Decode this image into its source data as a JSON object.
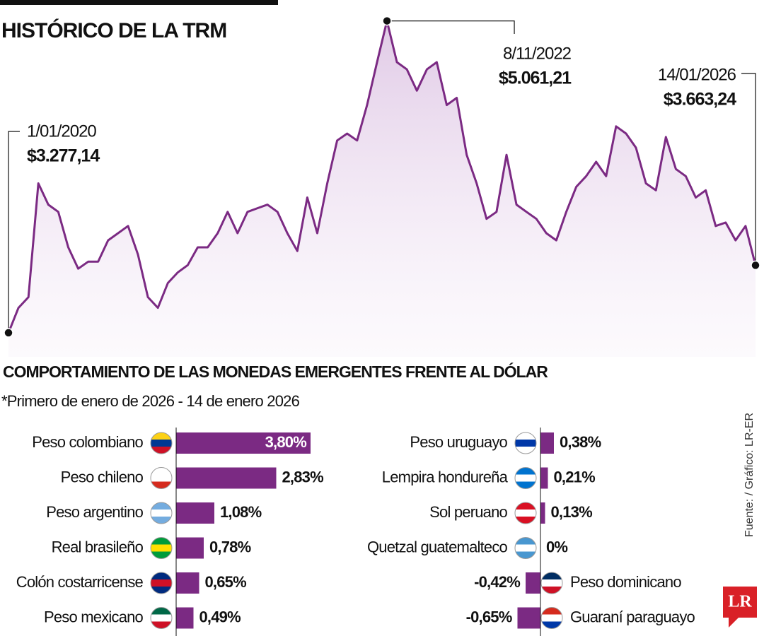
{
  "chart_data": [
    {
      "type": "line",
      "title": "HISTÓRICO DE LA TRM",
      "color": "#7b2a83",
      "ylim": [
        3200,
        5100
      ],
      "values": [
        3277.14,
        3420,
        3481,
        4132,
        4010,
        3969,
        3766,
        3644,
        3684,
        3684,
        3806,
        3847,
        3888,
        3725,
        3481,
        3420,
        3562,
        3623,
        3664,
        3766,
        3766,
        3847,
        3969,
        3847,
        3969,
        3990,
        4010,
        3969,
        3847,
        3745,
        4051,
        3847,
        4132,
        4377,
        4417,
        4377,
        4580,
        4825,
        5061.21,
        4825,
        4784,
        4662,
        4784,
        4825,
        4580,
        4621,
        4295,
        4132,
        3929,
        3969,
        4295,
        4010,
        3969,
        3929,
        3847,
        3806,
        3969,
        4112,
        4173,
        4255,
        4173,
        4458,
        4417,
        4336,
        4132,
        4092,
        4397,
        4214,
        4173,
        4051,
        4092,
        3888,
        3908,
        3806,
        3888,
        3663.24
      ],
      "annotations": [
        {
          "label": "1/01/2020",
          "value": 3277.14,
          "value_label": "$3.277,14"
        },
        {
          "label": "8/11/2022",
          "value": 5061.21,
          "value_label": "$5.061,21"
        },
        {
          "label": "14/01/2026",
          "value": 3663.24,
          "value_label": "$3.663,24"
        }
      ]
    },
    {
      "type": "bar",
      "title": "COMPORTAMIENTO DE LAS MONEDAS EMERGENTES FRENTE AL DÓLAR",
      "subtitle": "*Primero de enero de 2026 - 14 de enero 2026",
      "color": "#7b2a83",
      "categories": [
        "Peso colombiano",
        "Peso chileno",
        "Peso argentino",
        "Real brasileño",
        "Colón costarricense",
        "Peso mexicano",
        "Peso uruguayo",
        "Lempira hondureña",
        "Sol peruano",
        "Quetzal guatemalteco",
        "Peso dominicano",
        "Guaraní paraguayo"
      ],
      "values": [
        3.8,
        2.83,
        1.08,
        0.78,
        0.65,
        0.49,
        0.38,
        0.21,
        0.13,
        0,
        -0.42,
        -0.65
      ],
      "value_labels": [
        "3,80%",
        "2,83%",
        "1,08%",
        "0,78%",
        "0,65%",
        "0,49%",
        "0,38%",
        "0,21%",
        "0,13%",
        "0%",
        "-0,42%",
        "-0,65%"
      ]
    }
  ],
  "source": "Fuente: / Gráfico: LR-ER",
  "logo": "LR"
}
